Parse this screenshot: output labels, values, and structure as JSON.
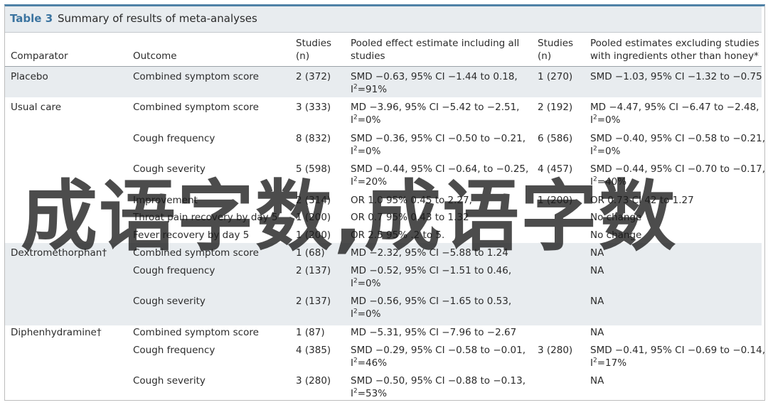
{
  "table": {
    "label": "Table 3",
    "title": "Summary of results of meta-analyses"
  },
  "headers": {
    "comparator": "Comparator",
    "outcome": "Outcome",
    "studies1_line1": "Studies",
    "studies1_line2": "(n)",
    "pooled_all_line1": "Pooled effect estimate including all",
    "pooled_all_line2": "studies",
    "studies2_line1": "Studies",
    "studies2_line2": "(n)",
    "pooled_excl_line1": "Pooled estimates excluding studies",
    "pooled_excl_line2": "with ingredients other than honey*"
  },
  "rows": [
    {
      "comparator": "Placebo",
      "outcome": "Combined symptom score",
      "studies1": "2 (372)",
      "est1_line1": "SMD −0.63, 95% CI −1.44 to 0.18,",
      "est1_line2": "=91%",
      "studies2": "1 (270)",
      "est2_line1": "SMD −1.03, 95% CI −1.32 to −0.75",
      "est2_line2": ""
    },
    {
      "comparator": "Usual care",
      "outcome": "Combined symptom score",
      "studies1": "3 (333)",
      "est1_line1": "MD −3.96, 95% CI −5.42 to −2.51,",
      "est1_line2": "=0%",
      "studies2": "2 (192)",
      "est2_line1": "MD −4.47, 95% CI −6.47 to −2.48,",
      "est2_line2": "=0%"
    },
    {
      "comparator": "",
      "outcome": "Cough frequency",
      "studies1": "8 (832)",
      "est1_line1": "SMD −0.36, 95% CI −0.50 to −0.21,",
      "est1_line2": "=0%",
      "studies2": "6 (586)",
      "est2_line1": "SMD −0.40, 95% CI −0.58 to −0.21,",
      "est2_line2": "=0%"
    },
    {
      "comparator": "",
      "outcome": "Cough severity",
      "studies1": "5 (598)",
      "est1_line1": "SMD −0.44, 95% CI −0.64, to −0.25,",
      "est1_line2": "=20%",
      "studies2": "4 (457)",
      "est2_line1": "SMD −0.44, 95% CI −0.70 to −0.17,",
      "est2_line2": "=40%"
    },
    {
      "comparator": "",
      "outcome": "Improvement",
      "studies1": "2 (314)",
      "est1_line1": "OR 1.0  95%  0.45 to 2.27,",
      "est1_line2": "",
      "studies2": "1 (200)",
      "est2_line1": "OR 0.73   CI   42 to 1.27",
      "est2_line2": ""
    },
    {
      "comparator": "",
      "outcome": "Throat pain recovery by day 5",
      "studies1": "1 (200)",
      "est1_line1": "OR 0.7  95%  0.43 to 1.32",
      "est1_line2": "",
      "studies2": "",
      "est2_line1": "No change",
      "est2_line2": ""
    },
    {
      "comparator": "",
      "outcome": "Fever recovery by day 5",
      "studies1": "1 (200)",
      "est1_line1": "OR 2.5  95%  .2 to 5.",
      "est1_line2": "",
      "studies2": "",
      "est2_line1": "No change",
      "est2_line2": ""
    },
    {
      "comparator": "Dextromethorphan†",
      "outcome": "Combined symptom score",
      "studies1": "1 (68)",
      "est1_line1": "MD −2.32, 95% CI −5.88 to 1.24",
      "est1_line2": "",
      "studies2": "",
      "est2_line1": "NA",
      "est2_line2": ""
    },
    {
      "comparator": "",
      "outcome": "Cough frequency",
      "studies1": "2 (137)",
      "est1_line1": "MD −0.52, 95% CI −1.51 to 0.46,",
      "est1_line2": "=0%",
      "studies2": "",
      "est2_line1": "NA",
      "est2_line2": ""
    },
    {
      "comparator": "",
      "outcome": "Cough severity",
      "studies1": "2 (137)",
      "est1_line1": "MD −0.56, 95% CI −1.65 to 0.53,",
      "est1_line2": "=0%",
      "studies2": "",
      "est2_line1": "NA",
      "est2_line2": ""
    },
    {
      "comparator": "Diphenhydramine†",
      "outcome": "Combined symptom score",
      "studies1": "1 (87)",
      "est1_line1": "MD −5.31, 95% CI −7.96 to −2.67",
      "est1_line2": "",
      "studies2": "",
      "est2_line1": "NA",
      "est2_line2": ""
    },
    {
      "comparator": "",
      "outcome": "Cough frequency",
      "studies1": "4 (385)",
      "est1_line1": "SMD −0.29, 95% CI −0.58 to −0.01,",
      "est1_line2": "=46%",
      "studies2": "3 (280)",
      "est2_line1": "SMD −0.41, 95% CI −0.69 to −0.14,",
      "est2_line2": "=17%"
    },
    {
      "comparator": "",
      "outcome": "Cough severity",
      "studies1": "3 (280)",
      "est1_line1": "SMD −0.50, 95% CI −0.88 to −0.13,",
      "est1_line2": "=53%",
      "studies2": "",
      "est2_line1": "NA",
      "est2_line2": ""
    }
  ],
  "i2_symbol": "I",
  "i2_sup": "2",
  "watermark": {
    "text": "成语字数,成语字数"
  },
  "colors": {
    "accent": "#3b74a0",
    "band": "#e8ecef",
    "text": "#2b2b2b"
  }
}
